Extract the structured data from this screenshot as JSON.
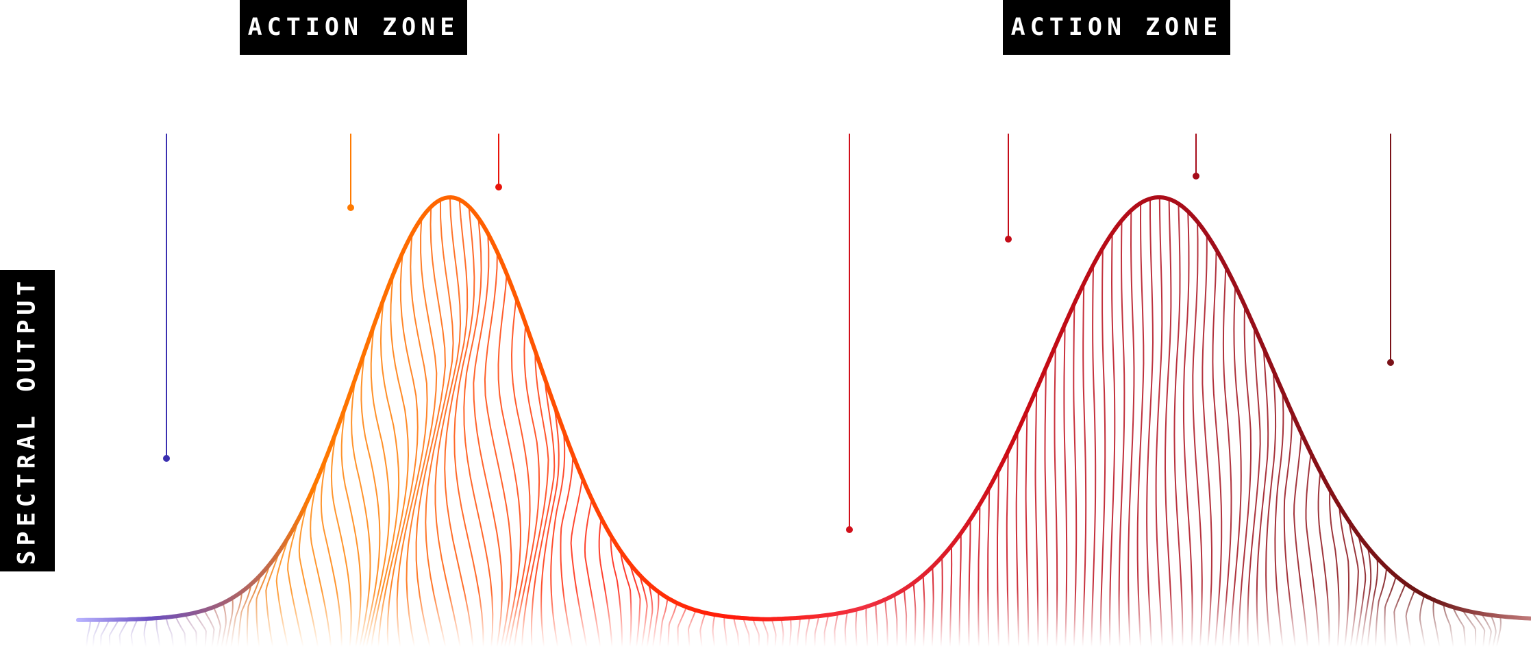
{
  "zones": [
    {
      "label": "ACTION ZONE"
    },
    {
      "label": "ACTION ZONE"
    }
  ],
  "axis": {
    "label": "SPECTRAL OUTPUT"
  },
  "colors": {
    "violet": "#3a2fb0",
    "orange": "#ff7a00",
    "red": "#e50d0d",
    "crimson": "#b5081e",
    "dark_red": "#6b1414"
  }
}
